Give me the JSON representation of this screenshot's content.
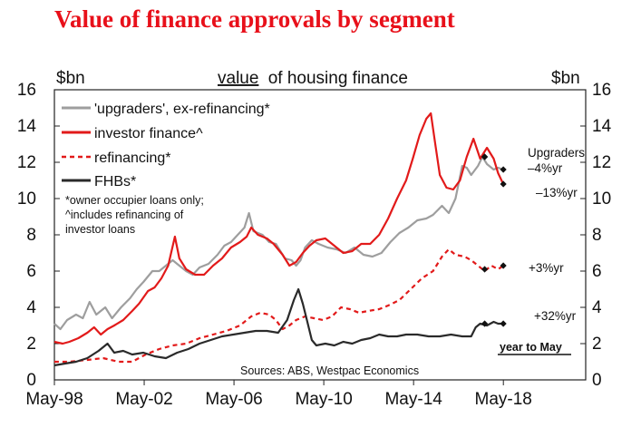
{
  "page_title": "Value of finance approvals by segment",
  "chart_data": {
    "type": "line",
    "title": "value of housing finance",
    "title_underlined_word": "value",
    "title_rest": "of housing finance",
    "ylabel_left": "$bn",
    "ylabel_right": "$bn",
    "ylim": [
      0,
      16
    ],
    "yticks": [
      0,
      2,
      4,
      6,
      8,
      10,
      12,
      14,
      16
    ],
    "xlim": [
      1998.333,
      2022.0
    ],
    "xticks": [
      {
        "value": 1998.333,
        "label": "May-98"
      },
      {
        "value": 2002.333,
        "label": "May-02"
      },
      {
        "value": 2006.333,
        "label": "May-06"
      },
      {
        "value": 2010.333,
        "label": "May-10"
      },
      {
        "value": 2014.333,
        "label": "May-14"
      },
      {
        "value": 2018.333,
        "label": "May-18"
      }
    ],
    "source": "Sources: ABS, Westpac Economics",
    "note_lines": [
      "*owner occupier loans only;",
      "^includes refinancing of",
      "investor loans"
    ],
    "year_to_may_label": "year to May",
    "series": [
      {
        "name": "'upgraders', ex-refinancing*",
        "key": "upgraders",
        "color": "#9e9e9e",
        "dash": false,
        "points": [
          [
            1998.33,
            3.1
          ],
          [
            1998.6,
            2.8
          ],
          [
            1998.9,
            3.3
          ],
          [
            1999.3,
            3.6
          ],
          [
            1999.6,
            3.4
          ],
          [
            1999.9,
            4.3
          ],
          [
            2000.2,
            3.6
          ],
          [
            2000.6,
            4.0
          ],
          [
            2000.9,
            3.4
          ],
          [
            2001.3,
            4.0
          ],
          [
            2001.7,
            4.5
          ],
          [
            2002.0,
            5.0
          ],
          [
            2002.3,
            5.4
          ],
          [
            2002.7,
            6.0
          ],
          [
            2003.0,
            6.0
          ],
          [
            2003.3,
            6.3
          ],
          [
            2003.6,
            6.6
          ],
          [
            2003.9,
            6.3
          ],
          [
            2004.2,
            6.0
          ],
          [
            2004.5,
            5.8
          ],
          [
            2004.8,
            6.2
          ],
          [
            2005.2,
            6.4
          ],
          [
            2005.6,
            6.9
          ],
          [
            2005.9,
            7.4
          ],
          [
            2006.2,
            7.6
          ],
          [
            2006.5,
            8.0
          ],
          [
            2006.8,
            8.4
          ],
          [
            2007.0,
            9.2
          ],
          [
            2007.2,
            8.2
          ],
          [
            2007.6,
            8.0
          ],
          [
            2007.9,
            7.6
          ],
          [
            2008.2,
            7.5
          ],
          [
            2008.6,
            6.7
          ],
          [
            2008.9,
            6.6
          ],
          [
            2009.1,
            6.3
          ],
          [
            2009.3,
            6.6
          ],
          [
            2009.5,
            7.3
          ],
          [
            2009.8,
            7.7
          ],
          [
            2010.1,
            7.5
          ],
          [
            2010.5,
            7.3
          ],
          [
            2010.9,
            7.2
          ],
          [
            2011.3,
            7.0
          ],
          [
            2011.7,
            7.3
          ],
          [
            2012.1,
            6.9
          ],
          [
            2012.5,
            6.8
          ],
          [
            2012.9,
            7.0
          ],
          [
            2013.3,
            7.6
          ],
          [
            2013.7,
            8.1
          ],
          [
            2014.1,
            8.4
          ],
          [
            2014.5,
            8.8
          ],
          [
            2014.9,
            8.9
          ],
          [
            2015.2,
            9.1
          ],
          [
            2015.6,
            9.6
          ],
          [
            2015.9,
            9.2
          ],
          [
            2016.2,
            10.0
          ],
          [
            2016.5,
            11.8
          ],
          [
            2016.7,
            11.7
          ],
          [
            2016.9,
            11.3
          ],
          [
            2017.2,
            11.8
          ],
          [
            2017.4,
            12.3
          ],
          [
            2017.6,
            11.9
          ],
          [
            2017.9,
            11.6
          ],
          [
            2018.1,
            11.7
          ],
          [
            2018.33,
            11.6
          ]
        ]
      },
      {
        "name": "investor finance^",
        "key": "investor",
        "color": "#e21a1a",
        "dash": false,
        "points": [
          [
            1998.33,
            2.1
          ],
          [
            1998.7,
            2.0
          ],
          [
            1999.0,
            2.1
          ],
          [
            1999.4,
            2.3
          ],
          [
            1999.8,
            2.6
          ],
          [
            2000.1,
            2.9
          ],
          [
            2000.4,
            2.5
          ],
          [
            2000.7,
            2.8
          ],
          [
            2001.0,
            3.0
          ],
          [
            2001.4,
            3.3
          ],
          [
            2001.8,
            3.8
          ],
          [
            2002.1,
            4.2
          ],
          [
            2002.5,
            4.9
          ],
          [
            2002.8,
            5.1
          ],
          [
            2003.1,
            5.6
          ],
          [
            2003.4,
            6.3
          ],
          [
            2003.7,
            7.9
          ],
          [
            2003.9,
            6.7
          ],
          [
            2004.2,
            6.1
          ],
          [
            2004.6,
            5.8
          ],
          [
            2005.0,
            5.8
          ],
          [
            2005.4,
            6.3
          ],
          [
            2005.8,
            6.7
          ],
          [
            2006.2,
            7.3
          ],
          [
            2006.6,
            7.6
          ],
          [
            2006.9,
            7.9
          ],
          [
            2007.1,
            8.4
          ],
          [
            2007.4,
            8.0
          ],
          [
            2007.8,
            7.8
          ],
          [
            2008.1,
            7.5
          ],
          [
            2008.5,
            6.9
          ],
          [
            2008.8,
            6.3
          ],
          [
            2009.1,
            6.5
          ],
          [
            2009.4,
            7.0
          ],
          [
            2009.7,
            7.4
          ],
          [
            2010.0,
            7.7
          ],
          [
            2010.4,
            7.8
          ],
          [
            2010.8,
            7.4
          ],
          [
            2011.2,
            7.0
          ],
          [
            2011.6,
            7.1
          ],
          [
            2012.0,
            7.5
          ],
          [
            2012.4,
            7.5
          ],
          [
            2012.8,
            8.0
          ],
          [
            2013.2,
            8.9
          ],
          [
            2013.6,
            10.0
          ],
          [
            2014.0,
            11.0
          ],
          [
            2014.3,
            12.2
          ],
          [
            2014.6,
            13.5
          ],
          [
            2014.9,
            14.4
          ],
          [
            2015.1,
            14.7
          ],
          [
            2015.3,
            13.0
          ],
          [
            2015.5,
            11.3
          ],
          [
            2015.8,
            10.6
          ],
          [
            2016.1,
            10.5
          ],
          [
            2016.4,
            11.0
          ],
          [
            2016.7,
            12.3
          ],
          [
            2017.0,
            13.3
          ],
          [
            2017.3,
            12.2
          ],
          [
            2017.6,
            12.8
          ],
          [
            2017.9,
            12.2
          ],
          [
            2018.1,
            11.4
          ],
          [
            2018.33,
            10.8
          ]
        ]
      },
      {
        "name": "refinancing*",
        "key": "refinancing",
        "color": "#e21a1a",
        "dash": true,
        "points": [
          [
            1998.33,
            1.0
          ],
          [
            1999.0,
            1.0
          ],
          [
            1999.8,
            1.1
          ],
          [
            2000.5,
            1.2
          ],
          [
            2001.2,
            1.0
          ],
          [
            2001.8,
            1.0
          ],
          [
            2002.4,
            1.4
          ],
          [
            2003.0,
            1.7
          ],
          [
            2003.6,
            1.9
          ],
          [
            2004.2,
            2.0
          ],
          [
            2004.8,
            2.3
          ],
          [
            2005.4,
            2.5
          ],
          [
            2006.0,
            2.7
          ],
          [
            2006.6,
            3.0
          ],
          [
            2007.1,
            3.5
          ],
          [
            2007.5,
            3.7
          ],
          [
            2007.9,
            3.6
          ],
          [
            2008.2,
            3.3
          ],
          [
            2008.5,
            2.8
          ],
          [
            2008.8,
            3.0
          ],
          [
            2009.1,
            3.3
          ],
          [
            2009.5,
            3.5
          ],
          [
            2009.9,
            3.4
          ],
          [
            2010.3,
            3.3
          ],
          [
            2010.7,
            3.5
          ],
          [
            2011.1,
            4.0
          ],
          [
            2011.5,
            3.9
          ],
          [
            2011.9,
            3.7
          ],
          [
            2012.3,
            3.8
          ],
          [
            2012.8,
            3.9
          ],
          [
            2013.2,
            4.1
          ],
          [
            2013.7,
            4.4
          ],
          [
            2014.2,
            5.0
          ],
          [
            2014.7,
            5.6
          ],
          [
            2015.2,
            6.0
          ],
          [
            2015.6,
            6.8
          ],
          [
            2015.9,
            7.2
          ],
          [
            2016.2,
            6.9
          ],
          [
            2016.6,
            6.8
          ],
          [
            2016.9,
            6.6
          ],
          [
            2017.2,
            6.3
          ],
          [
            2017.5,
            6.0
          ],
          [
            2017.8,
            6.3
          ],
          [
            2018.1,
            6.1
          ],
          [
            2018.33,
            6.3
          ]
        ]
      },
      {
        "name": "FHBs*",
        "key": "fhb",
        "color": "#2a2a2a",
        "dash": false,
        "points": [
          [
            1998.33,
            0.8
          ],
          [
            1998.8,
            0.9
          ],
          [
            1999.3,
            1.0
          ],
          [
            1999.8,
            1.2
          ],
          [
            2000.3,
            1.6
          ],
          [
            2000.7,
            2.0
          ],
          [
            2001.0,
            1.5
          ],
          [
            2001.4,
            1.6
          ],
          [
            2001.8,
            1.4
          ],
          [
            2002.3,
            1.5
          ],
          [
            2002.8,
            1.3
          ],
          [
            2003.3,
            1.2
          ],
          [
            2003.8,
            1.5
          ],
          [
            2004.3,
            1.7
          ],
          [
            2004.8,
            2.0
          ],
          [
            2005.3,
            2.2
          ],
          [
            2005.8,
            2.4
          ],
          [
            2006.3,
            2.5
          ],
          [
            2006.8,
            2.6
          ],
          [
            2007.3,
            2.7
          ],
          [
            2007.8,
            2.7
          ],
          [
            2008.3,
            2.6
          ],
          [
            2008.7,
            3.3
          ],
          [
            2009.0,
            4.4
          ],
          [
            2009.2,
            5.0
          ],
          [
            2009.4,
            4.2
          ],
          [
            2009.6,
            3.2
          ],
          [
            2009.8,
            2.2
          ],
          [
            2010.0,
            1.9
          ],
          [
            2010.4,
            2.0
          ],
          [
            2010.8,
            1.9
          ],
          [
            2011.2,
            2.1
          ],
          [
            2011.6,
            2.0
          ],
          [
            2012.0,
            2.2
          ],
          [
            2012.4,
            2.3
          ],
          [
            2012.8,
            2.5
          ],
          [
            2013.2,
            2.4
          ],
          [
            2013.6,
            2.4
          ],
          [
            2014.0,
            2.5
          ],
          [
            2014.5,
            2.5
          ],
          [
            2015.0,
            2.4
          ],
          [
            2015.5,
            2.4
          ],
          [
            2016.0,
            2.5
          ],
          [
            2016.5,
            2.4
          ],
          [
            2016.9,
            2.4
          ],
          [
            2017.1,
            2.9
          ],
          [
            2017.3,
            3.1
          ],
          [
            2017.6,
            3.0
          ],
          [
            2017.9,
            3.2
          ],
          [
            2018.1,
            3.1
          ],
          [
            2018.33,
            3.1
          ]
        ]
      }
    ],
    "markers": [
      {
        "series": "upgraders",
        "x": 2017.5,
        "y": 12.3
      },
      {
        "series": "upgraders",
        "x": 2018.33,
        "y": 11.6
      },
      {
        "series": "investor",
        "x": 2017.5,
        "y": 12.3
      },
      {
        "series": "investor",
        "x": 2018.33,
        "y": 10.8
      },
      {
        "series": "refinancing",
        "x": 2017.5,
        "y": 6.1
      },
      {
        "series": "refinancing",
        "x": 2018.33,
        "y": 6.3
      },
      {
        "series": "fhb",
        "x": 2017.5,
        "y": 3.1
      },
      {
        "series": "fhb",
        "x": 2018.33,
        "y": 3.1
      }
    ],
    "annotations": [
      {
        "key": "upgraders_name",
        "text": "Upgraders"
      },
      {
        "key": "upgraders_change",
        "text": "–4%yr"
      },
      {
        "key": "investor_change",
        "text": "–13%yr"
      },
      {
        "key": "refinancing_change",
        "text": "+3%yr"
      },
      {
        "key": "fhb_change",
        "text": "+32%yr"
      }
    ]
  }
}
